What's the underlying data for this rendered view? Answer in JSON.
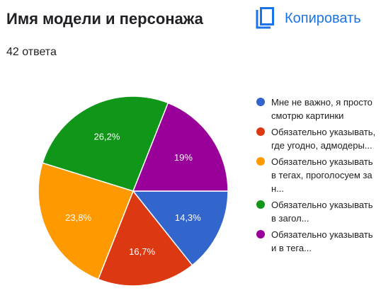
{
  "header": {
    "title": "Имя модели и персонажа",
    "copy_label": "Копировать",
    "copy_icon": "copy-icon"
  },
  "responses_count": "42 ответа",
  "chart_data": {
    "type": "pie",
    "title": "Имя модели и персонажа",
    "legend_position": "right",
    "slices": [
      {
        "label": "Мне не важно, я просто смотрю картинки",
        "value": 14.3,
        "display": "14,3%",
        "color": "#3366cc"
      },
      {
        "label": "Обязательно указывать, где угодно, адмодеры...",
        "value": 16.7,
        "display": "16,7%",
        "color": "#dc3912"
      },
      {
        "label": "Обязательно указывать в тегах, проголосуем за н...",
        "value": 23.8,
        "display": "23,8%",
        "color": "#ff9900"
      },
      {
        "label": "Обязательно указывать в загол...",
        "value": 26.2,
        "display": "26,2%",
        "color": "#109618"
      },
      {
        "label": "Обязательно указывать и в тега...",
        "value": 19.0,
        "display": "19%",
        "color": "#990099"
      }
    ]
  }
}
